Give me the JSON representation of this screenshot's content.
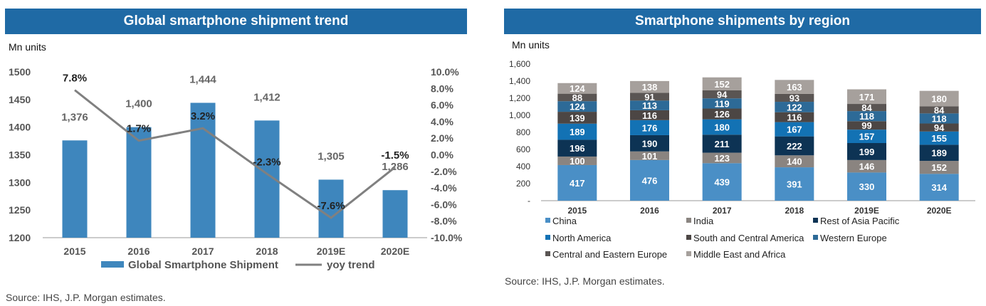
{
  "left_panel": {
    "title": "Global smartphone shipment trend",
    "unit": "Mn units",
    "source": "Source: IHS, J.P. Morgan estimates."
  },
  "right_panel": {
    "title": "Smartphone shipments by region",
    "unit": "Mn units",
    "source": "Source: IHS, J.P. Morgan estimates."
  },
  "chart_data": [
    {
      "type": "bar",
      "categories": [
        "2015",
        "2016",
        "2017",
        "2018",
        "2019E",
        "2020E"
      ],
      "series": [
        {
          "name": "Global Smartphone Shipment",
          "axis": "left",
          "chart": "bar",
          "values": [
            1376,
            1400,
            1444,
            1412,
            1305,
            1286
          ],
          "labels": [
            "1,376",
            "1,400",
            "1,444",
            "1,412",
            "1,305",
            "1,286"
          ],
          "color": "#3e86bd"
        },
        {
          "name": "yoy trend",
          "axis": "right",
          "chart": "line",
          "values": [
            7.8,
            1.7,
            3.2,
            -2.3,
            -7.6,
            -1.5
          ],
          "labels": [
            "7.8%",
            "1.7%",
            "3.2%",
            "-2.3%",
            "-7.6%",
            "-1.5%"
          ],
          "color": "#808080"
        }
      ],
      "ylim": [
        1200,
        1500
      ],
      "yticks": [
        "1200",
        "1250",
        "1300",
        "1350",
        "1400",
        "1450",
        "1500"
      ],
      "y2lim": [
        -10,
        10
      ],
      "y2ticks": [
        "-10.0%",
        "-8.0%",
        "-6.0%",
        "-4.0%",
        "-2.0%",
        "0.0%",
        "2.0%",
        "4.0%",
        "6.0%",
        "8.0%",
        "10.0%"
      ],
      "legend": "bottom",
      "grid": false
    },
    {
      "type": "bar",
      "stacked": true,
      "categories": [
        "2015",
        "2016",
        "2017",
        "2018",
        "2019E",
        "2020E"
      ],
      "series": [
        {
          "name": "China",
          "values": [
            417,
            476,
            439,
            391,
            330,
            314
          ],
          "color": "#4a8fc6"
        },
        {
          "name": "India",
          "values": [
            100,
            101,
            123,
            140,
            146,
            152
          ],
          "color": "#8a8480"
        },
        {
          "name": "Rest of Asia Pacific",
          "values": [
            196,
            190,
            211,
            222,
            199,
            189
          ],
          "color": "#0d3354"
        },
        {
          "name": "North America",
          "values": [
            189,
            176,
            180,
            167,
            157,
            155
          ],
          "color": "#1372b4"
        },
        {
          "name": "South and Central America",
          "values": [
            139,
            116,
            126,
            116,
            99,
            94
          ],
          "color": "#4c4644"
        },
        {
          "name": "Western Europe",
          "values": [
            124,
            113,
            119,
            122,
            118,
            118
          ],
          "color": "#2d6a97"
        },
        {
          "name": "Central and Eastern Europe",
          "values": [
            88,
            91,
            94,
            93,
            84,
            84
          ],
          "color": "#5a5553"
        },
        {
          "name": "Middle East and Africa",
          "values": [
            124,
            138,
            152,
            163,
            171,
            180
          ],
          "color": "#a6a09c"
        }
      ],
      "ylim": [
        0,
        1600
      ],
      "yticks": [
        "-",
        "200",
        "400",
        "600",
        "800",
        "1,000",
        "1,200",
        "1,400",
        "1,600"
      ],
      "legend": "bottom",
      "grid": false
    }
  ]
}
